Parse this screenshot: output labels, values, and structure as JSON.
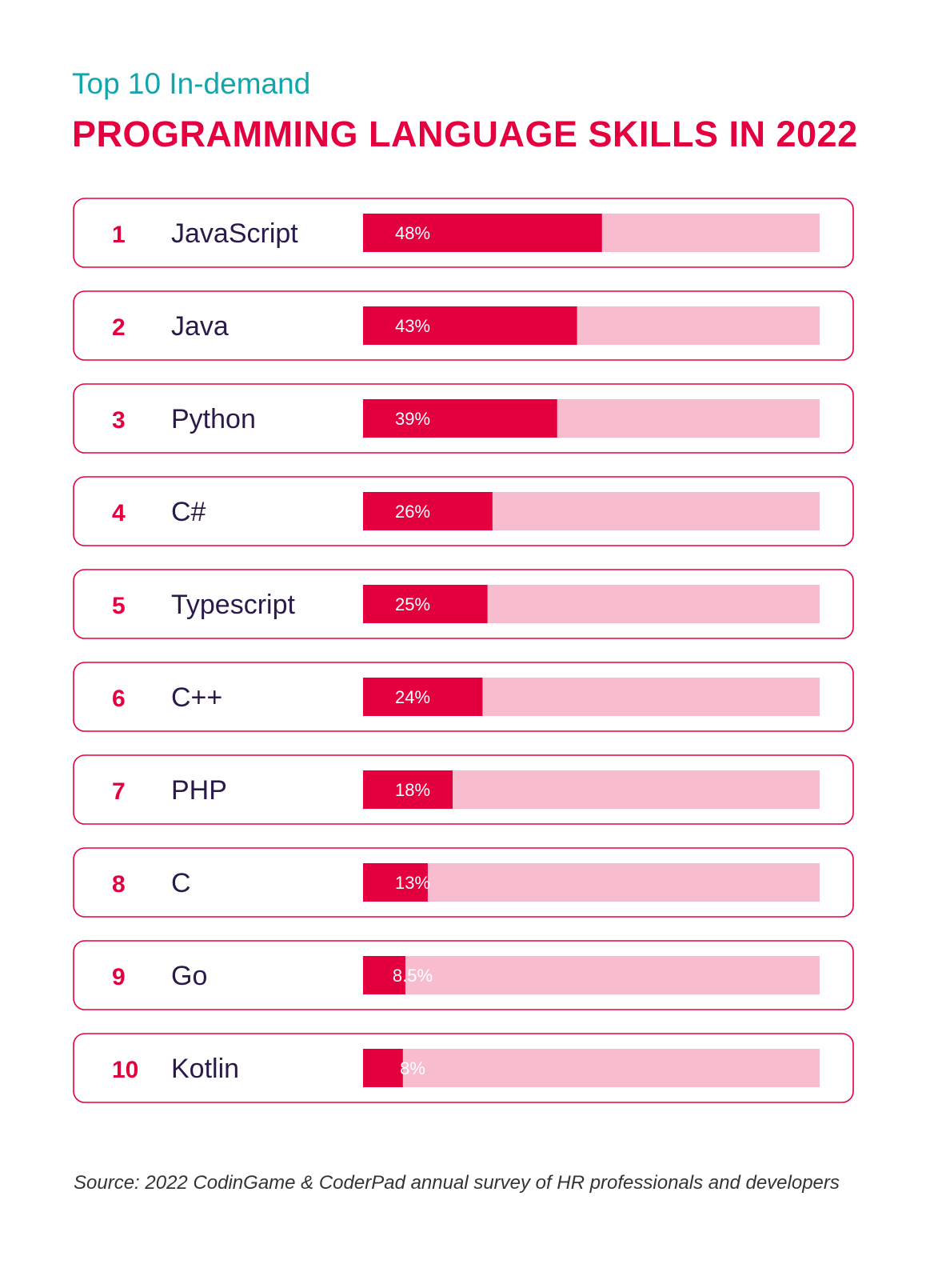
{
  "header": {
    "subtitle": "Top 10 In-demand",
    "title": "PROGRAMMING LANGUAGE SKILLS IN 2022"
  },
  "colors": {
    "accent": "#e4003f",
    "track": "#f7bdcf",
    "subtitle": "#12a5ad",
    "label": "#2a1a4a",
    "border": "#e4003f"
  },
  "chart_data": {
    "type": "bar",
    "orientation": "horizontal",
    "title": "PROGRAMMING LANGUAGE SKILLS IN 2022",
    "subtitle": "Top 10 In-demand",
    "ranks": [
      "1",
      "2",
      "3",
      "4",
      "5",
      "6",
      "7",
      "8",
      "9",
      "10"
    ],
    "categories": [
      "JavaScript",
      "Java",
      "Python",
      "C#",
      "Typescript",
      "C++",
      "PHP",
      "C",
      "Go",
      "Kotlin"
    ],
    "values": [
      48,
      43,
      39,
      26,
      25,
      24,
      18,
      13,
      8.5,
      8
    ],
    "value_labels": [
      "48%",
      "43%",
      "39%",
      "26%",
      "25%",
      "24%",
      "18%",
      "13%",
      "8.5%",
      "8%"
    ],
    "unit": "%",
    "xlim": [
      0,
      100
    ]
  },
  "footer": {
    "source": "Source: 2022 CodinGame & CoderPad annual survey of HR professionals and developers"
  }
}
